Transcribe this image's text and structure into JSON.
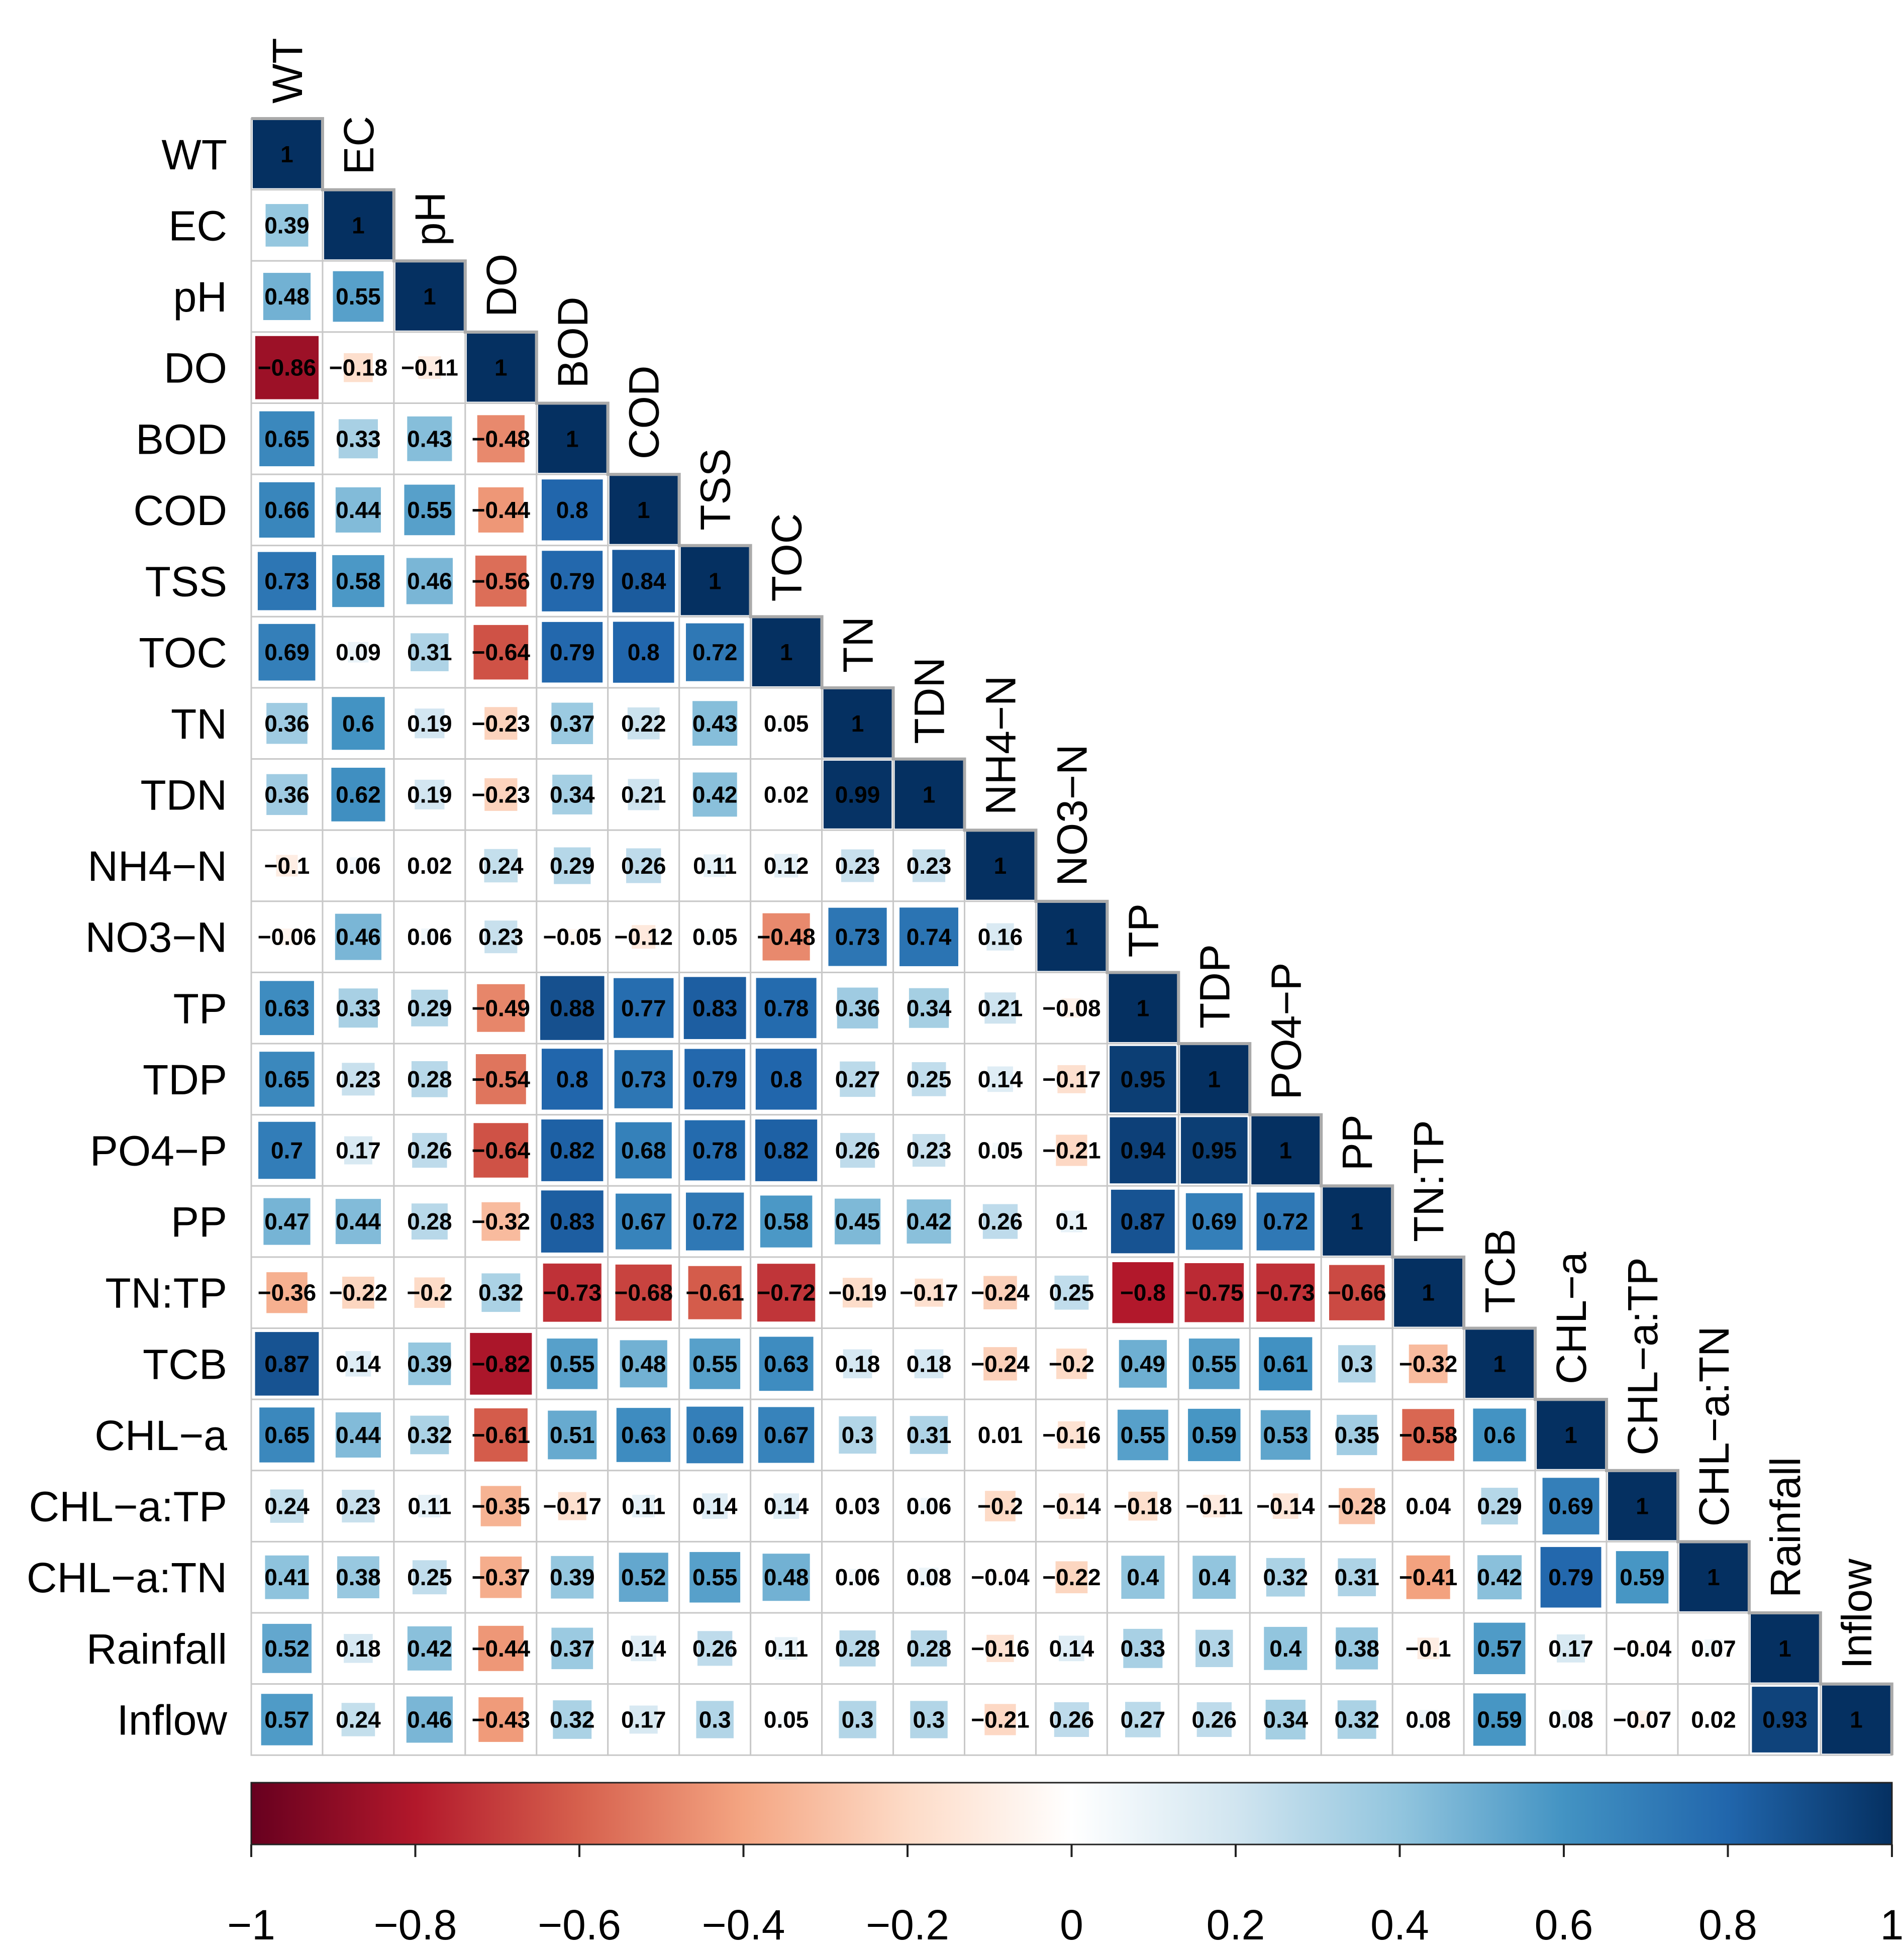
{
  "chart_data": {
    "type": "heatmap",
    "variables": [
      "WT",
      "EC",
      "pH",
      "DO",
      "BOD",
      "COD",
      "TSS",
      "TOC",
      "TN",
      "TDN",
      "NH4−N",
      "NO3−N",
      "TP",
      "TDP",
      "PO4−P",
      "PP",
      "TN:TP",
      "TCB",
      "CHL−a",
      "CHL−a:TP",
      "CHL−a:TN",
      "Rainfall",
      "Inflow"
    ],
    "row_labels": [
      "WT",
      "EC",
      "pH",
      "DO",
      "BOD",
      "COD",
      "TSS",
      "TOC",
      "TN",
      "TDN",
      "NH4−N",
      "NO3−N",
      "TP",
      "TDP",
      "PO4−P",
      "PP",
      "TN:TP",
      "TCB",
      "CHL−a",
      "CHL−a:TP",
      "CHL−a:TN",
      "Rainfall",
      "Inflow"
    ],
    "matrix_lower": [
      [
        1
      ],
      [
        0.39,
        1
      ],
      [
        0.48,
        0.55,
        1
      ],
      [
        -0.86,
        -0.18,
        -0.11,
        1
      ],
      [
        0.65,
        0.33,
        0.43,
        -0.48,
        1
      ],
      [
        0.66,
        0.44,
        0.55,
        -0.44,
        0.8,
        1
      ],
      [
        0.73,
        0.58,
        0.46,
        -0.56,
        0.79,
        0.84,
        1
      ],
      [
        0.69,
        0.09,
        0.31,
        -0.64,
        0.79,
        0.8,
        0.72,
        1
      ],
      [
        0.36,
        0.6,
        0.19,
        -0.23,
        0.37,
        0.22,
        0.43,
        0.05,
        1
      ],
      [
        0.36,
        0.62,
        0.19,
        -0.23,
        0.34,
        0.21,
        0.42,
        0.02,
        0.99,
        1
      ],
      [
        -0.1,
        0.06,
        0.02,
        0.24,
        0.29,
        0.26,
        0.11,
        0.12,
        0.23,
        0.23,
        1
      ],
      [
        -0.06,
        0.46,
        0.06,
        0.23,
        -0.05,
        -0.12,
        0.05,
        -0.48,
        0.73,
        0.74,
        0.16,
        1
      ],
      [
        0.63,
        0.33,
        0.29,
        -0.49,
        0.88,
        0.77,
        0.83,
        0.78,
        0.36,
        0.34,
        0.21,
        -0.08,
        1
      ],
      [
        0.65,
        0.23,
        0.28,
        -0.54,
        0.8,
        0.73,
        0.79,
        0.8,
        0.27,
        0.25,
        0.14,
        -0.17,
        0.95,
        1
      ],
      [
        0.7,
        0.17,
        0.26,
        -0.64,
        0.82,
        0.68,
        0.78,
        0.82,
        0.26,
        0.23,
        0.05,
        -0.21,
        0.94,
        0.95,
        1
      ],
      [
        0.47,
        0.44,
        0.28,
        -0.32,
        0.83,
        0.67,
        0.72,
        0.58,
        0.45,
        0.42,
        0.26,
        0.1,
        0.87,
        0.69,
        0.72,
        1
      ],
      [
        -0.36,
        -0.22,
        -0.2,
        0.32,
        -0.73,
        -0.68,
        -0.61,
        -0.72,
        -0.19,
        -0.17,
        -0.24,
        0.25,
        -0.8,
        -0.75,
        -0.73,
        -0.66,
        1
      ],
      [
        0.87,
        0.14,
        0.39,
        -0.82,
        0.55,
        0.48,
        0.55,
        0.63,
        0.18,
        0.18,
        -0.24,
        -0.2,
        0.49,
        0.55,
        0.61,
        0.3,
        -0.32,
        1
      ],
      [
        0.65,
        0.44,
        0.32,
        -0.61,
        0.51,
        0.63,
        0.69,
        0.67,
        0.3,
        0.31,
        0.01,
        -0.16,
        0.55,
        0.59,
        0.53,
        0.35,
        -0.58,
        0.6,
        1
      ],
      [
        0.24,
        0.23,
        0.11,
        -0.35,
        -0.17,
        0.11,
        0.14,
        0.14,
        0.03,
        0.06,
        -0.2,
        -0.14,
        -0.18,
        -0.11,
        -0.14,
        -0.28,
        0.04,
        0.29,
        0.69,
        1
      ],
      [
        0.41,
        0.38,
        0.25,
        -0.37,
        0.39,
        0.52,
        0.55,
        0.48,
        0.06,
        0.08,
        -0.04,
        -0.22,
        0.4,
        0.4,
        0.32,
        0.31,
        -0.41,
        0.42,
        0.79,
        0.59,
        1
      ],
      [
        0.52,
        0.18,
        0.42,
        -0.44,
        0.37,
        0.14,
        0.26,
        0.11,
        0.28,
        0.28,
        -0.16,
        0.14,
        0.33,
        0.3,
        0.4,
        0.38,
        -0.1,
        0.57,
        0.17,
        -0.04,
        0.07,
        1
      ],
      [
        0.57,
        0.24,
        0.46,
        -0.43,
        0.32,
        0.17,
        0.3,
        0.05,
        0.3,
        0.3,
        -0.21,
        0.26,
        0.27,
        0.26,
        0.34,
        0.32,
        0.08,
        0.59,
        0.08,
        -0.07,
        0.02,
        0.93,
        1
      ]
    ],
    "colorbar": {
      "range": [
        -1,
        1
      ],
      "ticks": [
        -1,
        -0.8,
        -0.6,
        -0.4,
        -0.2,
        0,
        0.2,
        0.4,
        0.6,
        0.8,
        1
      ],
      "tick_labels": [
        "−1",
        "−0.8",
        "−0.6",
        "−0.4",
        "−0.2",
        "0",
        "0.2",
        "0.4",
        "0.6",
        "0.8",
        "1"
      ],
      "placement": "bottom"
    },
    "colors": {
      "negative_end": "#67001F",
      "neutral": "#FFFFFF",
      "positive_end": "#053061",
      "grid": "#C8C8C8",
      "diagonal_border": "#AAAAAA"
    }
  }
}
